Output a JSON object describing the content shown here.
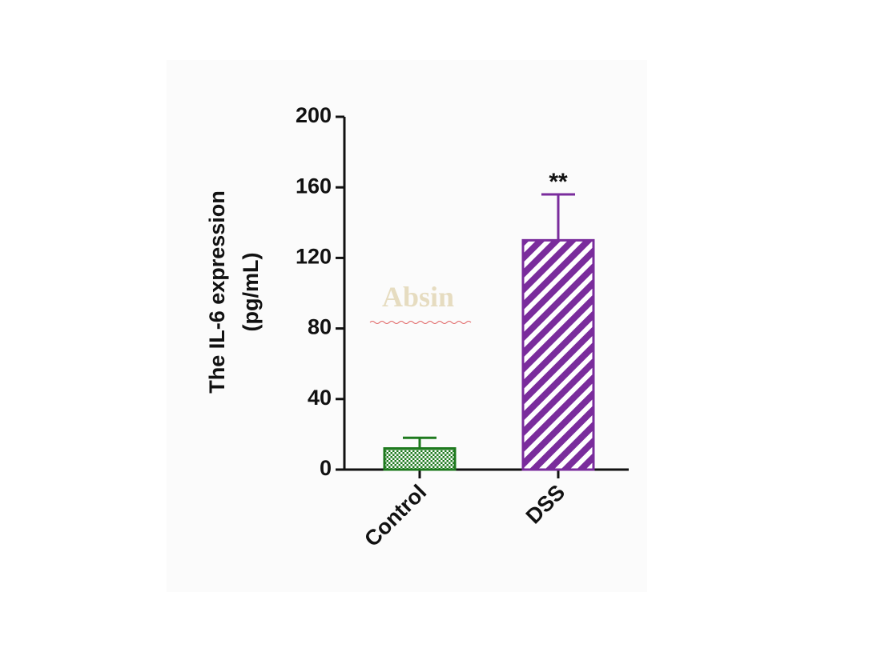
{
  "chart_data": {
    "type": "bar",
    "y_label_lines": [
      "The IL-6 expression",
      "(pg/mL)"
    ],
    "categories": [
      "Control",
      "DSS"
    ],
    "values": [
      12,
      130
    ],
    "errors": [
      6,
      26
    ],
    "colors": [
      "#1e7a1e",
      "#7a2c9c"
    ],
    "patterns": [
      "crosshatch",
      "stripes"
    ],
    "significance": [
      null,
      "**"
    ],
    "watermark": "Absin",
    "ylim": [
      0,
      200
    ],
    "yticks": [
      0,
      40,
      80,
      120,
      160,
      200
    ],
    "grid": false
  }
}
